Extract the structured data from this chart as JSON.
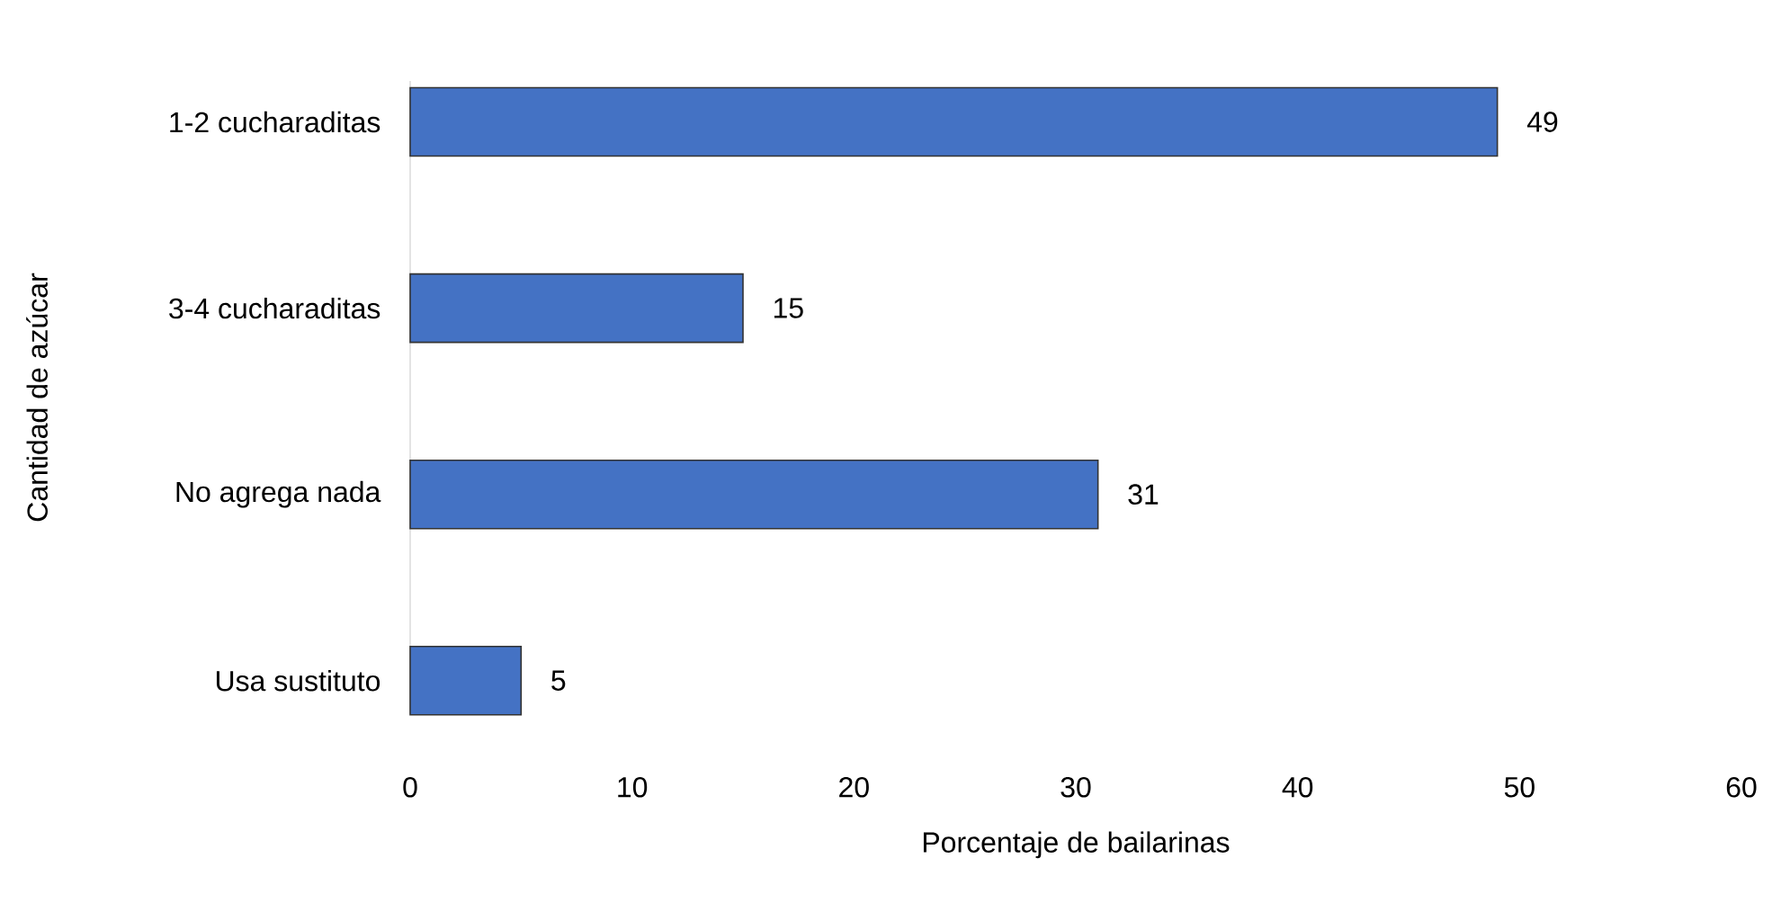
{
  "chart_data": {
    "type": "bar",
    "orientation": "horizontal",
    "xlabel": "Porcentaje de bailarinas",
    "ylabel": "Cantidad de azúcar",
    "categories": [
      "1-2 cucharaditas",
      "3-4 cucharaditas",
      "No agrega nada",
      "Usa sustituto"
    ],
    "values": [
      49,
      15,
      31,
      5
    ],
    "color": "#4472c4",
    "xlim": [
      0,
      60
    ],
    "xticks": [
      0,
      10,
      20,
      30,
      40,
      50,
      60
    ],
    "data_labels": true,
    "grid": false
  }
}
